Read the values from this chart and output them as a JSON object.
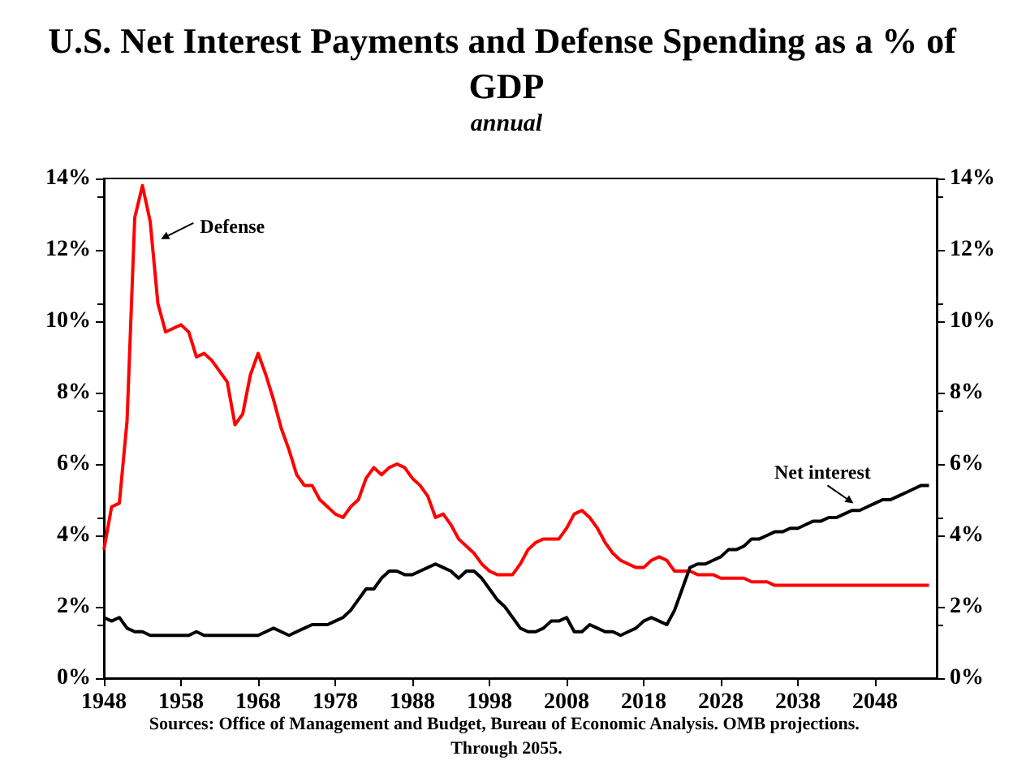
{
  "chart_data": {
    "type": "line",
    "title": "U.S. Net Interest Payments and Defense Spending as a % of GDP",
    "subtitle": "annual",
    "x": [
      1948,
      1949,
      1950,
      1951,
      1952,
      1953,
      1954,
      1955,
      1956,
      1957,
      1958,
      1959,
      1960,
      1961,
      1962,
      1963,
      1964,
      1965,
      1966,
      1967,
      1968,
      1969,
      1970,
      1971,
      1972,
      1973,
      1974,
      1975,
      1976,
      1977,
      1978,
      1979,
      1980,
      1981,
      1982,
      1983,
      1984,
      1985,
      1986,
      1987,
      1988,
      1989,
      1990,
      1991,
      1992,
      1993,
      1994,
      1995,
      1996,
      1997,
      1998,
      1999,
      2000,
      2001,
      2002,
      2003,
      2004,
      2005,
      2006,
      2007,
      2008,
      2009,
      2010,
      2011,
      2012,
      2013,
      2014,
      2015,
      2016,
      2017,
      2018,
      2019,
      2020,
      2021,
      2022,
      2023,
      2024,
      2025,
      2026,
      2027,
      2028,
      2029,
      2030,
      2031,
      2032,
      2033,
      2034,
      2035,
      2036,
      2037,
      2038,
      2039,
      2040,
      2041,
      2042,
      2043,
      2044,
      2045,
      2046,
      2047,
      2048,
      2049,
      2050,
      2051,
      2052,
      2053,
      2054,
      2055
    ],
    "series": [
      {
        "color": "#ff0000",
        "values": [
          3.6,
          4.8,
          4.9,
          7.2,
          12.9,
          13.8,
          12.8,
          10.5,
          9.7,
          9.8,
          9.9,
          9.7,
          9.0,
          9.1,
          8.9,
          8.6,
          8.3,
          7.1,
          7.4,
          8.5,
          9.1,
          8.5,
          7.8,
          7.0,
          6.4,
          5.7,
          5.4,
          5.4,
          5.0,
          4.8,
          4.6,
          4.5,
          4.8,
          5.0,
          5.6,
          5.9,
          5.7,
          5.9,
          6.0,
          5.9,
          5.6,
          5.4,
          5.1,
          4.5,
          4.6,
          4.3,
          3.9,
          3.7,
          3.5,
          3.2,
          3.0,
          2.9,
          2.9,
          2.9,
          3.2,
          3.6,
          3.8,
          3.9,
          3.9,
          3.9,
          4.2,
          4.6,
          4.7,
          4.5,
          4.2,
          3.8,
          3.5,
          3.3,
          3.2,
          3.1,
          3.1,
          3.3,
          3.4,
          3.3,
          3.0,
          3.0,
          3.0,
          2.9,
          2.9,
          2.9,
          2.8,
          2.8,
          2.8,
          2.8,
          2.7,
          2.7,
          2.7,
          2.6,
          2.6,
          2.6,
          2.6,
          2.6,
          2.6,
          2.6,
          2.6,
          2.6,
          2.6,
          2.6,
          2.6,
          2.6,
          2.6,
          2.6,
          2.6,
          2.6,
          2.6,
          2.6,
          2.6,
          2.6
        ]
      },
      {
        "color": "#000000",
        "values": [
          1.7,
          1.6,
          1.7,
          1.4,
          1.3,
          1.3,
          1.2,
          1.2,
          1.2,
          1.2,
          1.2,
          1.2,
          1.3,
          1.2,
          1.2,
          1.2,
          1.2,
          1.2,
          1.2,
          1.2,
          1.2,
          1.3,
          1.4,
          1.3,
          1.2,
          1.3,
          1.4,
          1.5,
          1.5,
          1.5,
          1.6,
          1.7,
          1.9,
          2.2,
          2.5,
          2.5,
          2.8,
          3.0,
          3.0,
          2.9,
          2.9,
          3.0,
          3.1,
          3.2,
          3.1,
          3.0,
          2.8,
          3.0,
          3.0,
          2.8,
          2.5,
          2.2,
          2.0,
          1.7,
          1.4,
          1.3,
          1.3,
          1.4,
          1.6,
          1.6,
          1.7,
          1.3,
          1.3,
          1.5,
          1.4,
          1.3,
          1.3,
          1.2,
          1.3,
          1.4,
          1.6,
          1.7,
          1.6,
          1.5,
          1.9,
          2.5,
          3.1,
          3.2,
          3.2,
          3.3,
          3.4,
          3.6,
          3.6,
          3.7,
          3.9,
          3.9,
          4.0,
          4.1,
          4.1,
          4.2,
          4.2,
          4.3,
          4.4,
          4.4,
          4.5,
          4.5,
          4.6,
          4.7,
          4.7,
          4.8,
          4.9,
          5.0,
          5.0,
          5.1,
          5.2,
          5.3,
          5.4,
          5.4
        ]
      }
    ],
    "xlim": [
      1948,
      2056
    ],
    "xticks": [
      1948,
      1958,
      1968,
      1978,
      1988,
      1998,
      2008,
      2018,
      2028,
      2038,
      2048
    ],
    "ylim": [
      0,
      14
    ],
    "yticks": [
      {
        "value": 0,
        "label": "0%"
      },
      {
        "value": 2,
        "label": "2%"
      },
      {
        "value": 4,
        "label": "4%"
      },
      {
        "value": 6,
        "label": "6%"
      },
      {
        "value": 8,
        "label": "8%"
      },
      {
        "value": 10,
        "label": "10%"
      },
      {
        "value": 12,
        "label": "12%"
      },
      {
        "value": 14,
        "label": "14%"
      }
    ],
    "y2lim": [
      0,
      14
    ],
    "y2ticks": [
      {
        "value": 0,
        "label": "0%"
      },
      {
        "value": 2,
        "label": "2%"
      },
      {
        "value": 4,
        "label": "4%"
      },
      {
        "value": 6,
        "label": "6%"
      },
      {
        "value": 8,
        "label": "8%"
      },
      {
        "value": 10,
        "label": "10%"
      },
      {
        "value": 12,
        "label": "12%"
      },
      {
        "value": 14,
        "label": "14%"
      }
    ],
    "annotations": [
      {
        "text": "Defense",
        "x": 1955.4,
        "y": 12.3
      },
      {
        "text": "Net interest",
        "x": 2045.2,
        "y": 4.9
      },
      "Sources: Office of Management and Budget, Bureau of Economic Analysis. OMB projections. Through 2055."
    ],
    "grid": false,
    "marker": "none",
    "line_style": "solid"
  }
}
